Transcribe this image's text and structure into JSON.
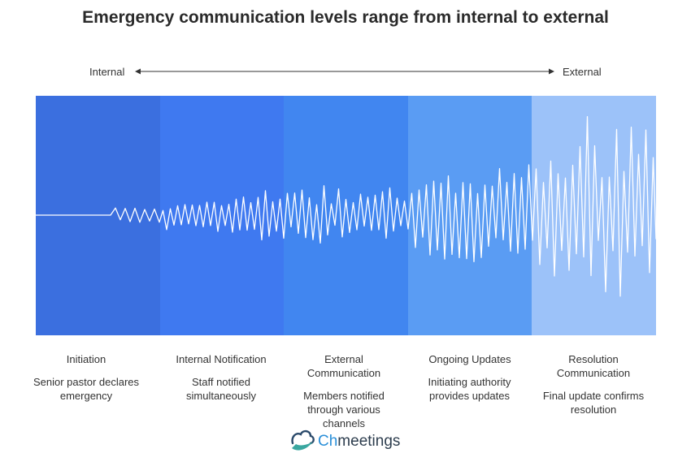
{
  "title": "Emergency communication levels range from internal to external",
  "axis": {
    "left_label": "Internal",
    "right_label": "External"
  },
  "stages": [
    {
      "name": "Initiation",
      "description": "Senior pastor declares emergency",
      "color": "#3b6fdf"
    },
    {
      "name": "Internal Notification",
      "description": "Staff notified simultaneously",
      "color": "#3f79f0"
    },
    {
      "name": "External Communication",
      "description": "Members notified through various channels",
      "color": "#4186f0"
    },
    {
      "name": "Ongoing Updates",
      "description": "Initiating authority provides updates",
      "color": "#5a9cf3"
    },
    {
      "name": "Resolution Communication",
      "description": "Final update confirms resolution",
      "color": "#9cc2f9"
    }
  ],
  "logo": {
    "prefix": "Ch",
    "suffix": "meetings"
  }
}
